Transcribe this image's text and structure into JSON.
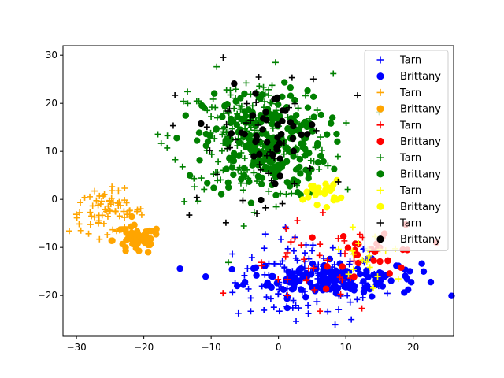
{
  "chart_data": {
    "type": "scatter",
    "title": "",
    "xlabel": "",
    "ylabel": "",
    "xlim": [
      -32,
      26
    ],
    "ylim": [
      -28.5,
      32
    ],
    "grid": false,
    "legend_position": "top-right",
    "x_ticks": [
      -30,
      -20,
      -10,
      0,
      10,
      20
    ],
    "y_ticks": [
      -20,
      -10,
      0,
      10,
      20,
      30
    ],
    "x_tick_labels": [
      "−30",
      "−20",
      "−10",
      "0",
      "10",
      "20"
    ],
    "y_tick_labels": [
      "−20",
      "−10",
      "0",
      "10",
      "20",
      "30"
    ],
    "series": [
      {
        "name": "Tarn",
        "marker": "plus",
        "color": "#0000ff",
        "count": 120,
        "center": [
          4.5,
          -17
        ],
        "spread": [
          5.5,
          4.5
        ]
      },
      {
        "name": "Brittany",
        "marker": "circle",
        "color": "#0000ff",
        "count": 160,
        "center": [
          8,
          -16.5
        ],
        "spread": [
          6.5,
          1.8
        ]
      },
      {
        "name": "Tarn",
        "marker": "plus",
        "color": "#ffa500",
        "count": 70,
        "center": [
          -25.5,
          -2.5
        ],
        "spread": [
          2.8,
          2.2
        ]
      },
      {
        "name": "Brittany",
        "marker": "circle",
        "color": "#ffa500",
        "count": 55,
        "center": [
          -21,
          -8.5
        ],
        "spread": [
          1.8,
          1.5
        ]
      },
      {
        "name": "Tarn",
        "marker": "plus",
        "color": "#ff0000",
        "count": 35,
        "center": [
          5,
          -15
        ],
        "spread": [
          5,
          5
        ]
      },
      {
        "name": "Brittany",
        "marker": "circle",
        "color": "#ff0000",
        "count": 30,
        "center": [
          15,
          -11
        ],
        "spread": [
          3.5,
          3
        ]
      },
      {
        "name": "Tarn",
        "marker": "plus",
        "color": "#008000",
        "count": 190,
        "center": [
          -4,
          13
        ],
        "spread": [
          6,
          6.5
        ]
      },
      {
        "name": "Brittany",
        "marker": "circle",
        "color": "#008000",
        "count": 230,
        "center": [
          -2,
          11.5
        ],
        "spread": [
          4.5,
          5.5
        ]
      },
      {
        "name": "Tarn",
        "marker": "plus",
        "color": "#ffff00",
        "count": 20,
        "center": [
          14,
          -12
        ],
        "spread": [
          3.5,
          4
        ]
      },
      {
        "name": "Brittany",
        "marker": "circle",
        "color": "#ffff00",
        "count": 25,
        "center": [
          6.5,
          1.5
        ],
        "spread": [
          1.3,
          1.2
        ]
      },
      {
        "name": "Tarn",
        "marker": "plus",
        "color": "#000000",
        "count": 45,
        "center": [
          -4,
          12
        ],
        "spread": [
          6,
          8
        ]
      },
      {
        "name": "Brittany",
        "marker": "circle",
        "color": "#000000",
        "count": 40,
        "center": [
          -1,
          14
        ],
        "spread": [
          3.5,
          4.5
        ]
      }
    ]
  }
}
